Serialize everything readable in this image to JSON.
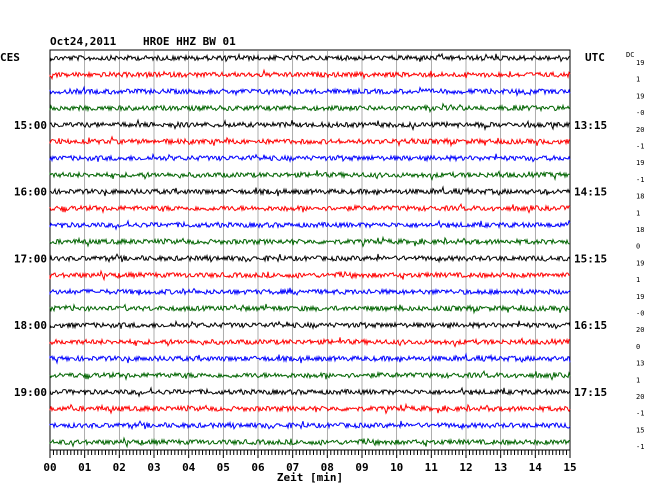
{
  "header": {
    "date": "Oct24,2011",
    "station": "HROE HHZ BW 01"
  },
  "left_zone_label": "CES",
  "right_zone_label": "UTC",
  "dc_label": "DC",
  "chart_data": {
    "type": "line",
    "title": "Oct24,2011   HROE HHZ BW 01",
    "xlabel": "Zeit [min]",
    "x_ticks": [
      "00",
      "01",
      "02",
      "03",
      "04",
      "05",
      "06",
      "07",
      "08",
      "09",
      "10",
      "11",
      "12",
      "13",
      "14",
      "15"
    ],
    "xlim": [
      0,
      15
    ],
    "trace_count": 24,
    "trace_colors": [
      "#000000",
      "#ff0000",
      "#0000ff",
      "#006400"
    ],
    "left_time_labels": [
      {
        "trace": 4,
        "label": "15:00"
      },
      {
        "trace": 8,
        "label": "16:00"
      },
      {
        "trace": 12,
        "label": "17:00"
      },
      {
        "trace": 16,
        "label": "18:00"
      },
      {
        "trace": 20,
        "label": "19:00"
      }
    ],
    "right_time_labels": [
      {
        "trace": 4,
        "label": "13:15"
      },
      {
        "trace": 8,
        "label": "14:15"
      },
      {
        "trace": 12,
        "label": "15:15"
      },
      {
        "trace": 16,
        "label": "16:15"
      },
      {
        "trace": 20,
        "label": "17:15"
      }
    ],
    "dc_offsets": [
      "19",
      "1",
      "19",
      "-0",
      "20",
      "-1",
      "19",
      "-1",
      "18",
      "1",
      "18",
      "0",
      "19",
      "1",
      "19",
      "-0",
      "20",
      "0",
      "13",
      "1",
      "20",
      "-1",
      "15",
      "-1"
    ]
  }
}
